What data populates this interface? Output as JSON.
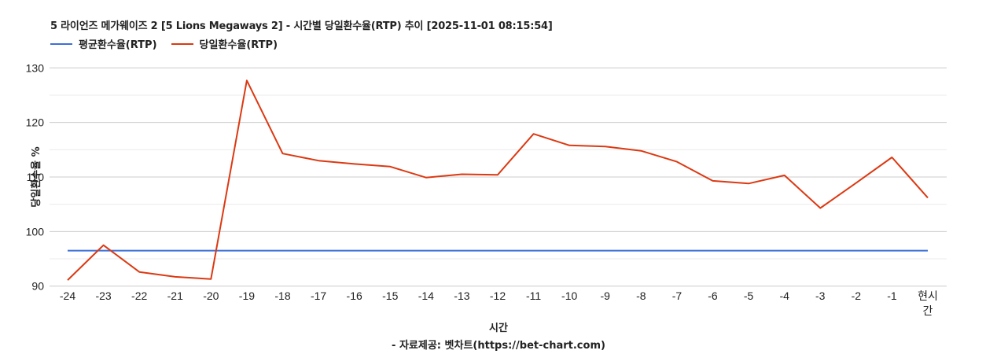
{
  "header": {
    "title": "5 라이언즈 메가웨이즈 2 [5 Lions Megaways 2] - 시간별 당일환수율(RTP) 추이 [2025-11-01 08:15:54]"
  },
  "legend": {
    "items": [
      {
        "label": "평균환수율(RTP)",
        "color": "#3c6fd8"
      },
      {
        "label": "당일환수율(RTP)",
        "color": "#dc3912"
      }
    ]
  },
  "axes": {
    "ylabel": "당일환수율 %",
    "xlabel": "시간"
  },
  "footer": {
    "source": "- 자료제공: 벳차트(https://bet-chart.com)"
  },
  "chart_data": {
    "type": "line",
    "title": "5 라이언즈 메가웨이즈 2 [5 Lions Megaways 2] - 시간별 당일환수율(RTP) 추이 [2025-11-01 08:15:54]",
    "xlabel": "시간",
    "ylabel": "당일환수율 %",
    "categories": [
      "-24",
      "-23",
      "-22",
      "-21",
      "-20",
      "-19",
      "-18",
      "-17",
      "-16",
      "-15",
      "-14",
      "-13",
      "-12",
      "-11",
      "-10",
      "-9",
      "-8",
      "-7",
      "-6",
      "-5",
      "-4",
      "-3",
      "-2",
      "-1",
      "현시간"
    ],
    "series": [
      {
        "name": "평균환수율(RTP)",
        "color": "#3c6fd8",
        "values": [
          96.5,
          96.5,
          96.5,
          96.5,
          96.5,
          96.5,
          96.5,
          96.5,
          96.5,
          96.5,
          96.5,
          96.5,
          96.5,
          96.5,
          96.5,
          96.5,
          96.5,
          96.5,
          96.5,
          96.5,
          96.5,
          96.5,
          96.5,
          96.5,
          96.5
        ]
      },
      {
        "name": "당일환수율(RTP)",
        "color": "#dc3912",
        "values": [
          91.1,
          97.5,
          92.6,
          91.7,
          91.3,
          127.7,
          114.3,
          113.0,
          112.4,
          111.9,
          109.9,
          110.5,
          110.4,
          117.9,
          115.8,
          115.6,
          114.8,
          112.8,
          109.3,
          108.8,
          110.3,
          104.3,
          108.9,
          113.6,
          106.2
        ]
      }
    ],
    "yticks": [
      90,
      100,
      110,
      120,
      130
    ],
    "ylim": [
      90,
      130
    ],
    "grid": true,
    "legend_position": "top-left"
  }
}
